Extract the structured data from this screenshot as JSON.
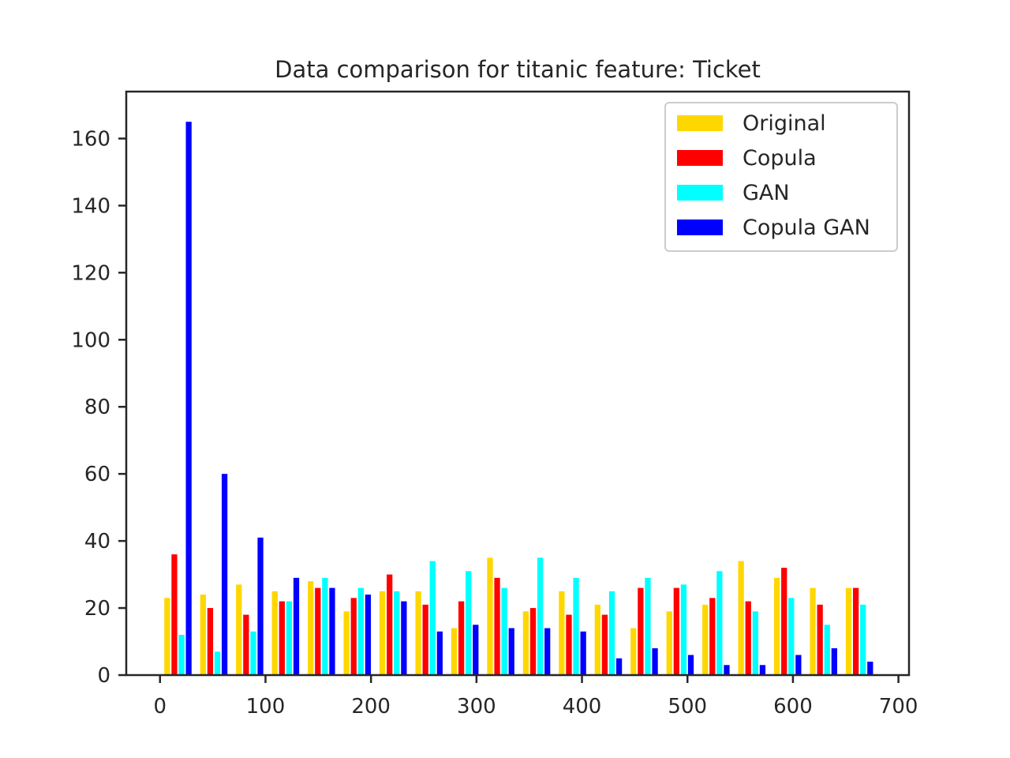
{
  "chart_data": {
    "type": "bar",
    "title": "Data comparison for titanic feature: Ticket",
    "xlabel": "",
    "ylabel": "",
    "xlim": [
      -32,
      710
    ],
    "ylim": [
      0,
      174
    ],
    "xticks": [
      0,
      100,
      200,
      300,
      400,
      500,
      600,
      700
    ],
    "yticks": [
      0,
      20,
      40,
      60,
      80,
      100,
      120,
      140,
      160
    ],
    "legend_position": "top-right",
    "grid": false,
    "bin_starts": [
      0,
      34,
      68,
      102,
      136,
      170,
      204,
      238,
      272,
      306,
      340,
      374,
      408,
      442,
      476,
      510,
      544,
      578,
      612,
      646
    ],
    "bin_width": 34,
    "series": [
      {
        "name": "Original",
        "color": "#FFD700",
        "values": [
          23,
          24,
          27,
          25,
          28,
          19,
          25,
          25,
          14,
          35,
          19,
          25,
          21,
          14,
          19,
          21,
          34,
          29,
          26,
          26
        ]
      },
      {
        "name": "Copula",
        "color": "#FF0000",
        "values": [
          36,
          20,
          18,
          22,
          26,
          23,
          30,
          21,
          22,
          29,
          20,
          18,
          18,
          26,
          26,
          23,
          22,
          32,
          21,
          26
        ]
      },
      {
        "name": "GAN",
        "color": "#00FFFF",
        "values": [
          12,
          7,
          13,
          22,
          29,
          26,
          25,
          34,
          31,
          26,
          35,
          29,
          25,
          29,
          27,
          31,
          19,
          23,
          15,
          21
        ]
      },
      {
        "name": "Copula GAN",
        "color": "#0000FF",
        "values": [
          165,
          60,
          41,
          29,
          26,
          24,
          22,
          13,
          15,
          14,
          14,
          13,
          5,
          8,
          6,
          3,
          3,
          6,
          8,
          4
        ]
      }
    ]
  }
}
